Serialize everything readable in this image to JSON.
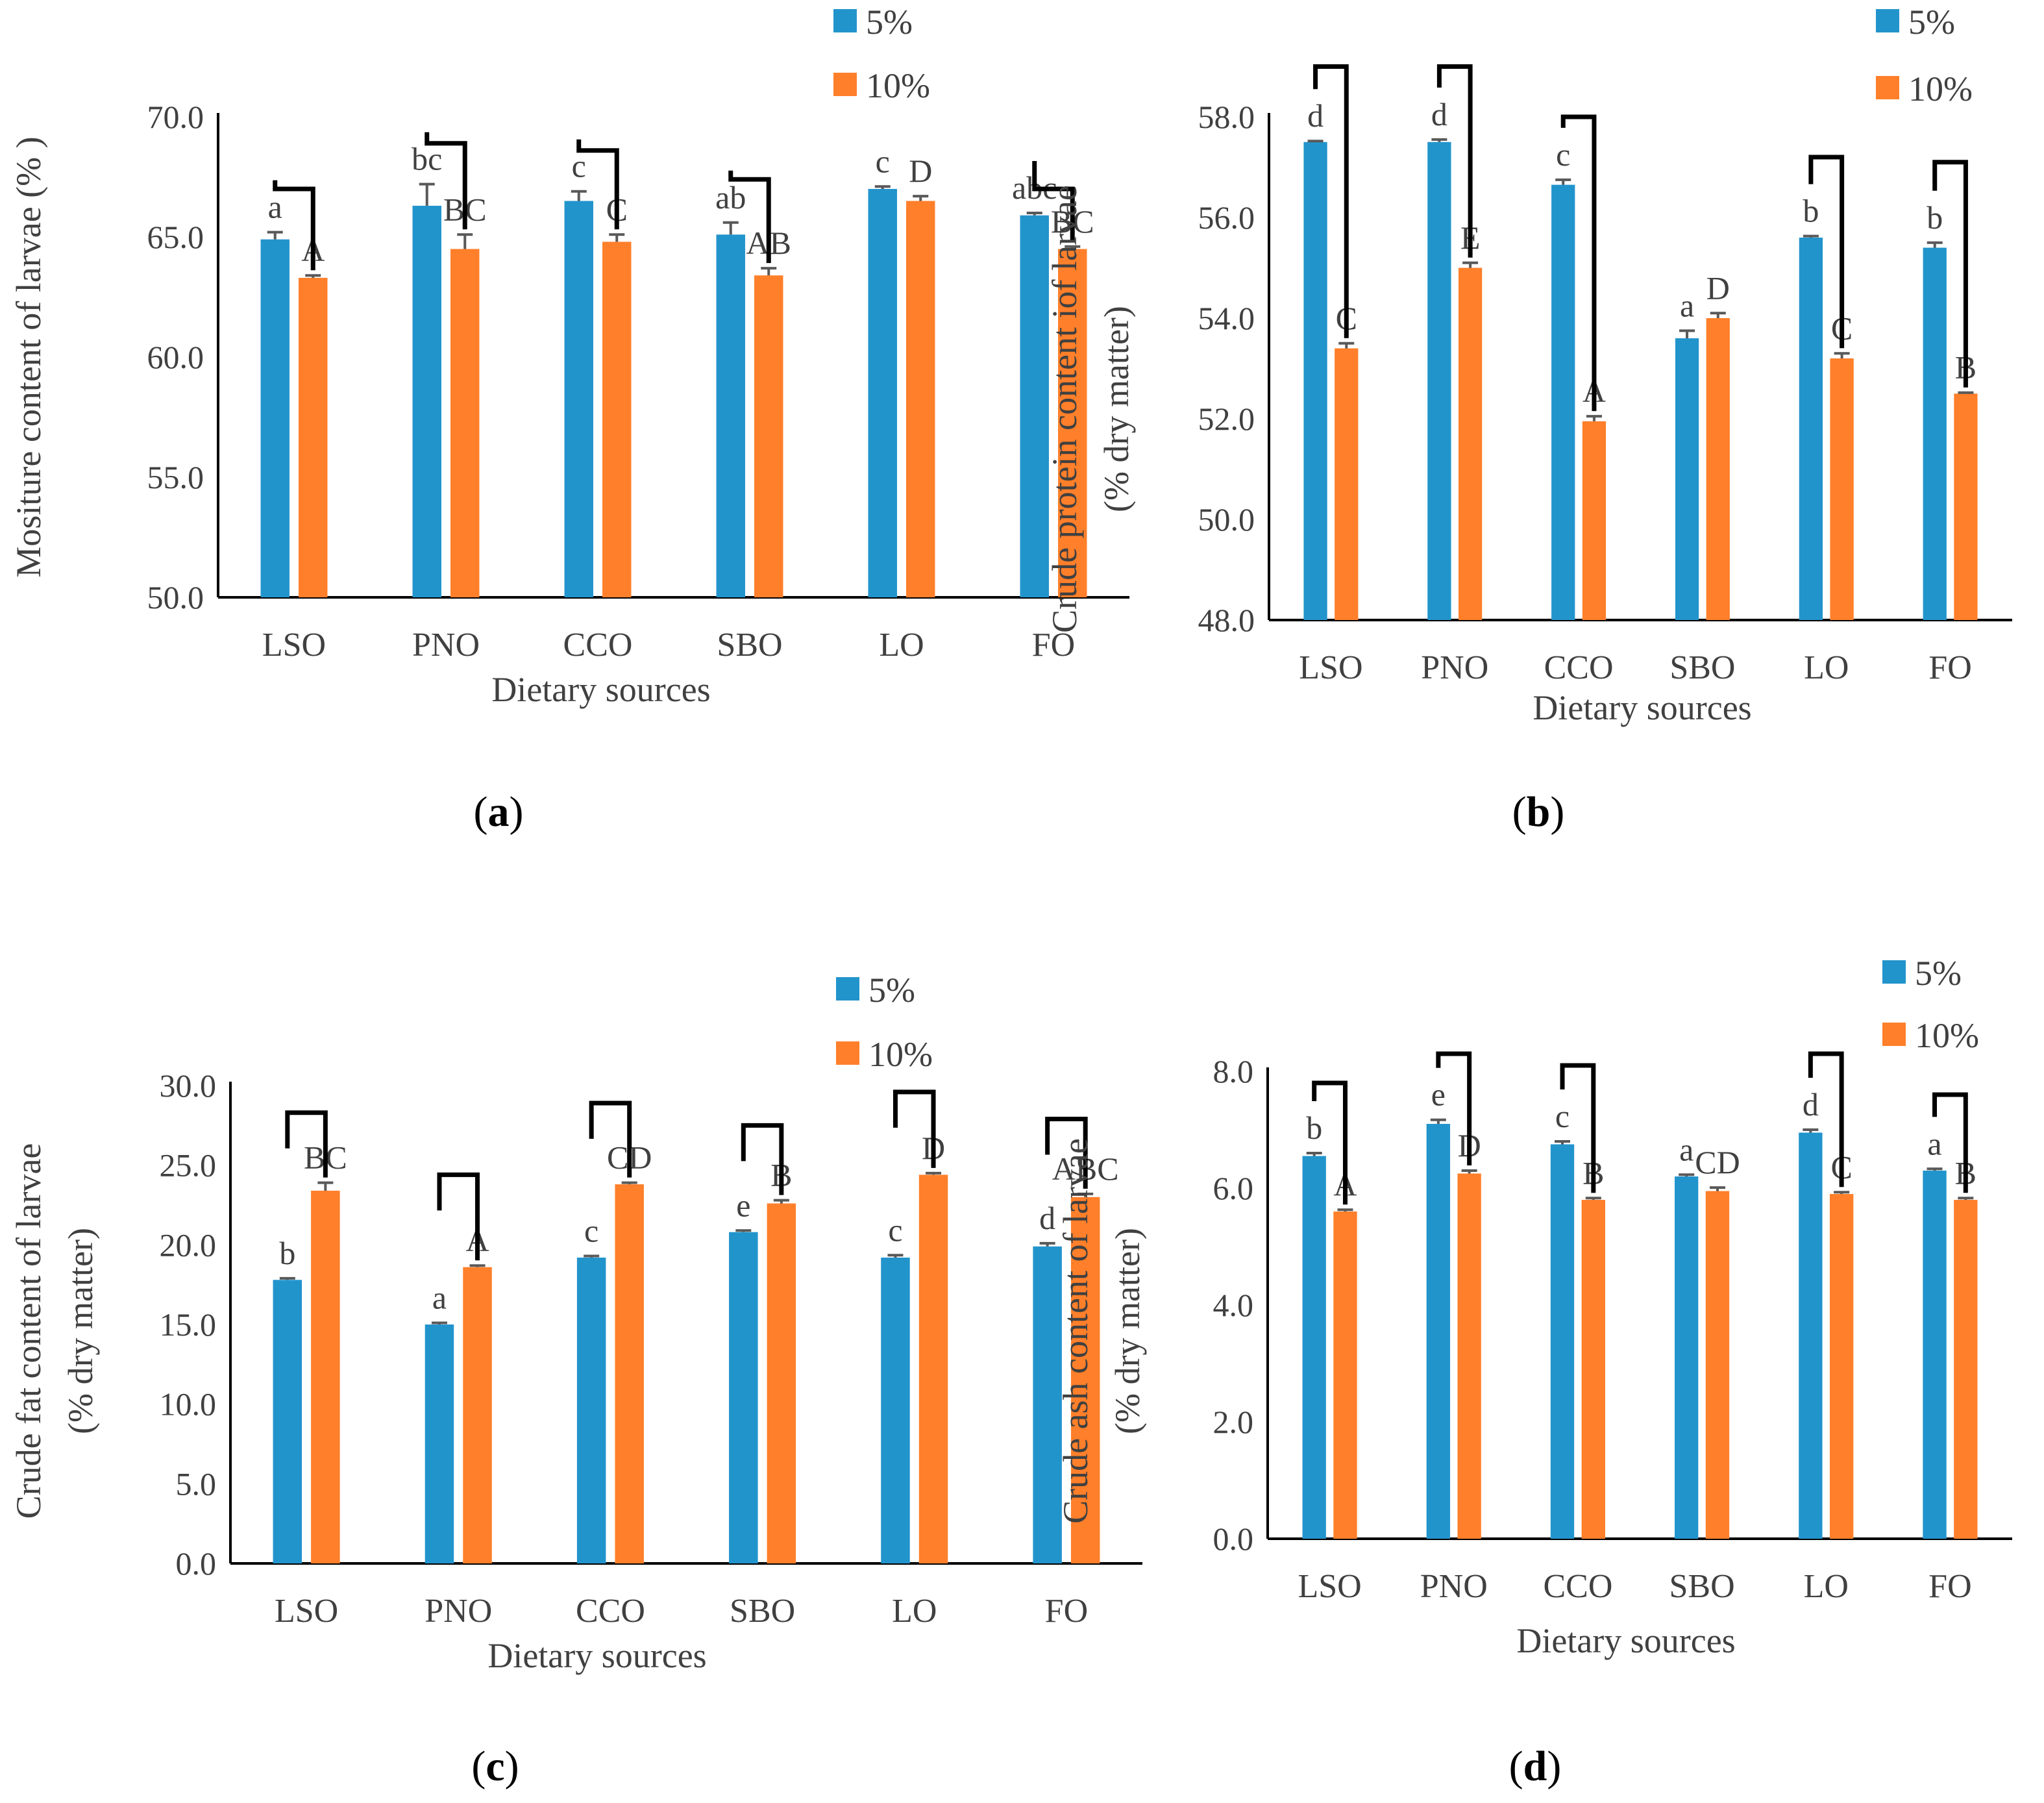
{
  "chart_data": [
    {
      "panel": "a",
      "type": "bar",
      "categories": [
        "LSO",
        "PNO",
        "CCO",
        "SBO",
        "LO",
        "FO"
      ],
      "series": [
        {
          "name": "5%",
          "values": [
            64.9,
            66.3,
            66.5,
            65.1,
            67.0,
            65.9
          ],
          "errors": [
            0.3,
            0.9,
            0.4,
            0.5,
            0.1,
            0.1
          ],
          "letters": [
            "a",
            "bc",
            "c",
            "ab",
            "c",
            "abc"
          ]
        },
        {
          "name": "10%",
          "values": [
            63.3,
            64.5,
            64.8,
            63.4,
            66.5,
            64.5
          ],
          "errors": [
            0.1,
            0.6,
            0.3,
            0.3,
            0.2,
            0.1
          ],
          "letters": [
            "A",
            "BC",
            "C",
            "AB",
            "D",
            "BC"
          ]
        }
      ],
      "brackets": [
        67.0,
        68.9,
        68.6,
        67.4,
        null,
        67.0
      ],
      "title": "",
      "xlabel": "Dietary sources",
      "ylabel": "Mositure content of larvae (% )",
      "ylim": [
        50.0,
        70.0
      ],
      "ticks": [
        "50.0",
        "55.0",
        "60.0",
        "65.0",
        "70.0"
      ],
      "panel_label": "a",
      "legend": [
        "5%",
        "10%"
      ],
      "legend_position": "top-right",
      "colors": [
        "#2294CC",
        "#FF7F2A"
      ]
    },
    {
      "panel": "b",
      "type": "bar",
      "categories": [
        "LSO",
        "PNO",
        "CCO",
        "SBO",
        "LO",
        "FO"
      ],
      "series": [
        {
          "name": "5%",
          "values": [
            57.5,
            57.5,
            56.65,
            53.6,
            55.6,
            55.4
          ],
          "errors": [
            0.02,
            0.05,
            0.1,
            0.15,
            0.03,
            0.1
          ],
          "letters": [
            "d",
            "d",
            "c",
            "a",
            "b",
            "b"
          ]
        },
        {
          "name": "10%",
          "values": [
            53.4,
            55.0,
            51.95,
            54.0,
            53.2,
            52.5
          ],
          "errors": [
            0.1,
            0.1,
            0.1,
            0.1,
            0.1,
            0.02
          ],
          "letters": [
            "C",
            "E",
            "A",
            "D",
            "C",
            "B"
          ]
        }
      ],
      "brackets": [
        59.0,
        59.0,
        58.0,
        null,
        57.2,
        57.1
      ],
      "title": "",
      "xlabel": "Dietary sources",
      "ylabel": "Crude protein content iof larvae (% dry matter)",
      "ylim": [
        48.0,
        58.0
      ],
      "ticks": [
        "48.0",
        "50.0",
        "52.0",
        "54.0",
        "56.0",
        "58.0"
      ],
      "panel_label": "b",
      "legend": [
        "5%",
        "10%"
      ],
      "legend_position": "top-right",
      "colors": [
        "#2294CC",
        "#FF7F2A"
      ]
    },
    {
      "panel": "c",
      "type": "bar",
      "categories": [
        "LSO",
        "PNO",
        "CCO",
        "SBO",
        "LO",
        "FO"
      ],
      "series": [
        {
          "name": "5%",
          "values": [
            17.8,
            15.0,
            19.2,
            20.8,
            19.2,
            19.9
          ],
          "errors": [
            0.1,
            0.1,
            0.1,
            0.1,
            0.15,
            0.2
          ],
          "letters": [
            "b",
            "a",
            "c",
            "e",
            "c",
            "d"
          ]
        },
        {
          "name": "10%",
          "values": [
            23.4,
            18.6,
            23.8,
            22.6,
            24.4,
            23.0
          ],
          "errors": [
            0.5,
            0.1,
            0.1,
            0.2,
            0.1,
            0.2
          ],
          "letters": [
            "BC",
            "A",
            "CD",
            "B",
            "D",
            "ABC"
          ]
        }
      ],
      "brackets": [
        28.3,
        24.4,
        28.9,
        27.5,
        29.6,
        27.9
      ],
      "title": "",
      "xlabel": "Dietary sources",
      "ylabel": "Crude fat content of larvae (% dry matter)",
      "ylim": [
        0.0,
        30.0
      ],
      "ticks": [
        "0.0",
        "5.0",
        "10.0",
        "15.0",
        "20.0",
        "25.0",
        "30.0"
      ],
      "panel_label": "c",
      "legend": [
        "5%",
        "10%"
      ],
      "legend_position": "top-right",
      "colors": [
        "#2294CC",
        "#FF7F2A"
      ]
    },
    {
      "panel": "d",
      "type": "bar",
      "categories": [
        "LSO",
        "PNO",
        "CCO",
        "SBO",
        "LO",
        "FO"
      ],
      "series": [
        {
          "name": "5%",
          "values": [
            6.55,
            7.1,
            6.75,
            6.2,
            6.95,
            6.3
          ],
          "errors": [
            0.05,
            0.07,
            0.05,
            0.03,
            0.05,
            0.03
          ],
          "letters": [
            "b",
            "e",
            "c",
            "a",
            "d",
            "a"
          ]
        },
        {
          "name": "10%",
          "values": [
            5.6,
            6.25,
            5.8,
            5.95,
            5.9,
            5.8
          ],
          "errors": [
            0.03,
            0.05,
            0.03,
            0.06,
            0.03,
            0.03
          ],
          "letters": [
            "A",
            "D",
            "B",
            "CD",
            "C",
            "B"
          ]
        }
      ],
      "brackets": [
        7.8,
        8.3,
        8.1,
        null,
        8.3,
        7.6
      ],
      "title": "",
      "xlabel": "Dietary sources",
      "ylabel": "Crude ash content of larvae (% dry matter)",
      "ylim": [
        0.0,
        8.0
      ],
      "ticks": [
        "0.0",
        "2.0",
        "4.0",
        "6.0",
        "8.0"
      ],
      "panel_label": "d",
      "legend": [
        "5%",
        "10%"
      ],
      "legend_position": "top-right",
      "colors": [
        "#2294CC",
        "#FF7F2A"
      ]
    }
  ]
}
